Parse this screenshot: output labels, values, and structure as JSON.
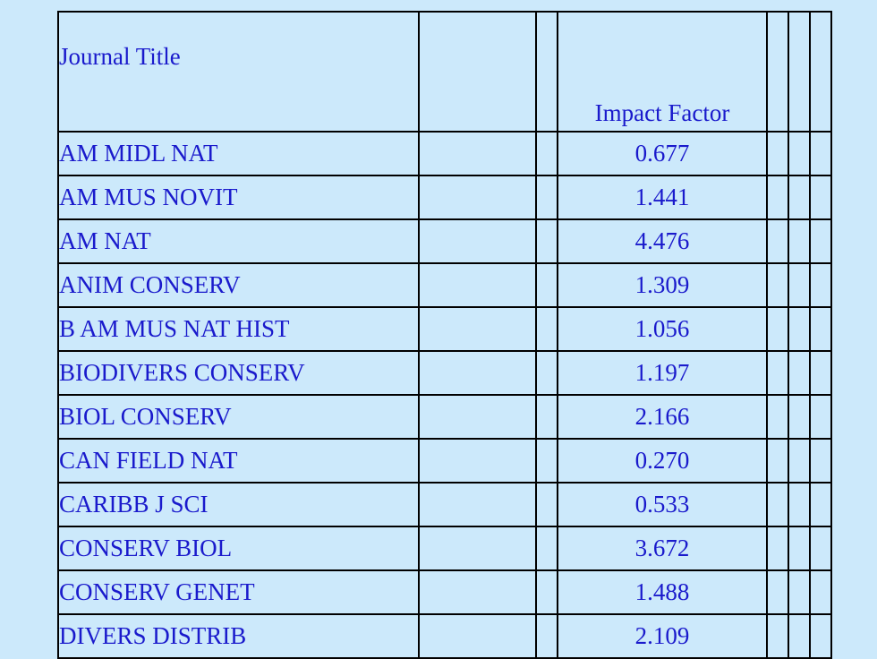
{
  "table": {
    "header": {
      "title": "Journal Title",
      "impact": "Impact Factor"
    },
    "rows": [
      {
        "title": "AM MIDL NAT",
        "impact": "0.677"
      },
      {
        "title": "AM MUS NOVIT",
        "impact": "1.441"
      },
      {
        "title": "AM NAT",
        "impact": "4.476"
      },
      {
        "title": "ANIM CONSERV",
        "impact": "1.309"
      },
      {
        "title": "B AM MUS NAT HIST",
        "impact": "1.056"
      },
      {
        "title": "BIODIVERS CONSERV",
        "impact": "1.197"
      },
      {
        "title": "BIOL CONSERV",
        "impact": "2.166"
      },
      {
        "title": "CAN FIELD NAT",
        "impact": "0.270"
      },
      {
        "title": "CARIBB J SCI",
        "impact": "0.533"
      },
      {
        "title": "CONSERV BIOL",
        "impact": "3.672"
      },
      {
        "title": "CONSERV GENET",
        "impact": "1.488"
      },
      {
        "title": "DIVERS DISTRIB",
        "impact": "2.109"
      }
    ]
  },
  "colors": {
    "background": "#cce9fb",
    "text": "#1a1acc",
    "border": "#000000"
  }
}
